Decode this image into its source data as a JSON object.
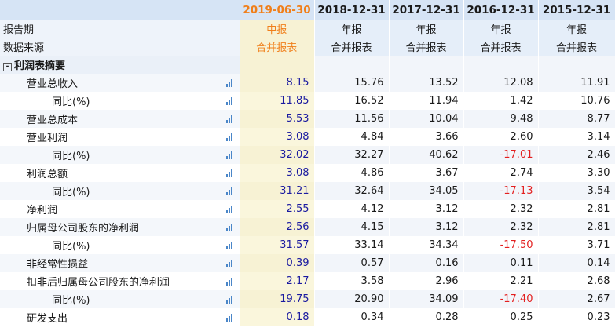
{
  "periods": [
    "2019-06-30",
    "2018-12-31",
    "2017-12-31",
    "2016-12-31",
    "2015-12-31"
  ],
  "report_label": "报告期",
  "report_types": [
    "中报",
    "年报",
    "年报",
    "年报",
    "年报"
  ],
  "source_label": "数据来源",
  "sources": [
    "合并报表",
    "合并报表",
    "合并报表",
    "合并报表",
    "合并报表"
  ],
  "section": {
    "toggle": "-",
    "title": "利润表摘要"
  },
  "rows": [
    {
      "label": "营业总收入",
      "level": 1,
      "values": [
        "8.15",
        "15.76",
        "13.52",
        "12.08",
        "11.91"
      ]
    },
    {
      "label": "同比(%)",
      "level": 2,
      "values": [
        "11.85",
        "16.52",
        "11.94",
        "1.42",
        "10.76"
      ]
    },
    {
      "label": "营业总成本",
      "level": 1,
      "values": [
        "5.53",
        "11.56",
        "10.04",
        "9.48",
        "8.77"
      ]
    },
    {
      "label": "营业利润",
      "level": 1,
      "values": [
        "3.08",
        "4.84",
        "3.66",
        "2.60",
        "3.14"
      ]
    },
    {
      "label": "同比(%)",
      "level": 2,
      "values": [
        "32.02",
        "32.27",
        "40.62",
        "-17.01",
        "2.46"
      ]
    },
    {
      "label": "利润总额",
      "level": 1,
      "values": [
        "3.08",
        "4.86",
        "3.67",
        "2.74",
        "3.30"
      ]
    },
    {
      "label": "同比(%)",
      "level": 2,
      "values": [
        "31.21",
        "32.64",
        "34.05",
        "-17.13",
        "3.54"
      ]
    },
    {
      "label": "净利润",
      "level": 1,
      "values": [
        "2.55",
        "4.12",
        "3.12",
        "2.32",
        "2.81"
      ]
    },
    {
      "label": "归属母公司股东的净利润",
      "level": 1,
      "values": [
        "2.56",
        "4.15",
        "3.12",
        "2.32",
        "2.81"
      ]
    },
    {
      "label": "同比(%)",
      "level": 2,
      "values": [
        "31.57",
        "33.14",
        "34.34",
        "-17.50",
        "3.71"
      ]
    },
    {
      "label": "非经常性损益",
      "level": 1,
      "values": [
        "0.39",
        "0.57",
        "0.16",
        "0.11",
        "0.14"
      ]
    },
    {
      "label": "扣非后归属母公司股东的净利润",
      "level": 1,
      "values": [
        "2.17",
        "3.58",
        "2.96",
        "2.21",
        "2.68"
      ]
    },
    {
      "label": "同比(%)",
      "level": 2,
      "values": [
        "19.75",
        "20.90",
        "34.09",
        "-17.40",
        "2.67"
      ]
    },
    {
      "label": "研发支出",
      "level": 1,
      "values": [
        "0.18",
        "0.34",
        "0.28",
        "0.25",
        "0.23"
      ]
    }
  ],
  "colors": {
    "accent": "#f07f1a",
    "negative": "#e31f1f",
    "header_bg": "#d6e4f5"
  },
  "row_icon": "bar-chart-icon"
}
